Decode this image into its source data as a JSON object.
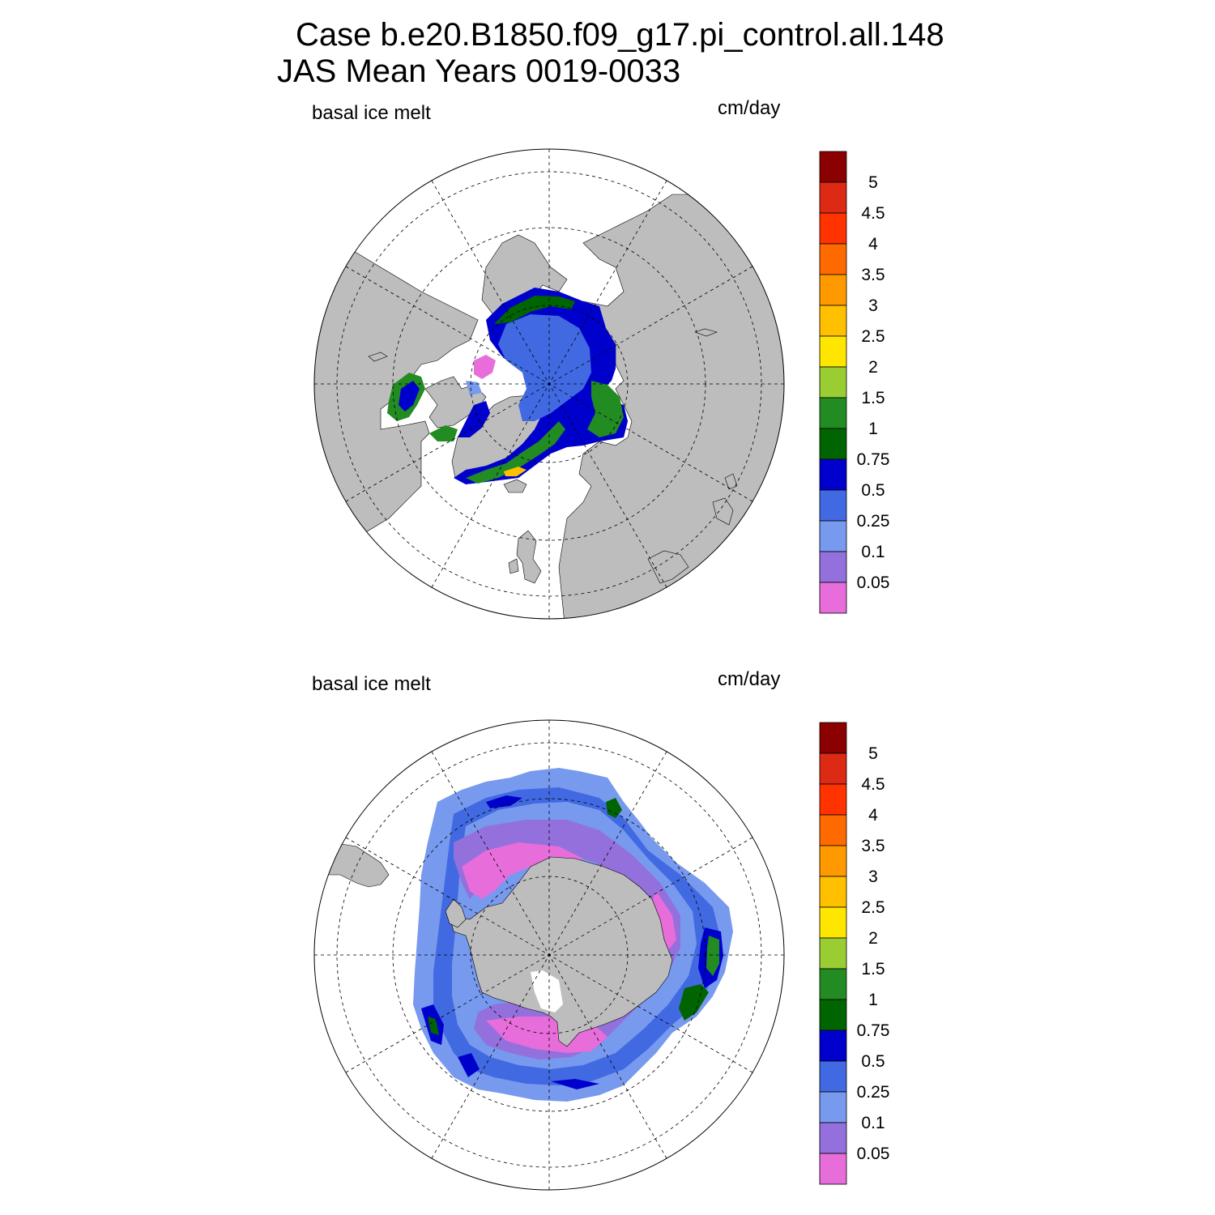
{
  "title": {
    "line1": "Case b.e20.B1850.f09_g17.pi_control.all.148",
    "line2": "JAS Mean   Years 0019-0033"
  },
  "panels": [
    {
      "id": "north",
      "variable": "basal ice melt",
      "units": "cm/day"
    },
    {
      "id": "south",
      "variable": "basal ice melt",
      "units": "cm/day"
    }
  ],
  "colorbar": {
    "levels": [
      "0.05",
      "0.1",
      "0.25",
      "0.5",
      "0.75",
      "1",
      "1.5",
      "2",
      "2.5",
      "3",
      "3.5",
      "4",
      "4.5",
      "5"
    ],
    "colors": [
      "#e76ddb",
      "#9370db",
      "#7799ee",
      "#4169e1",
      "#0000cd",
      "#006400",
      "#228b22",
      "#9acd32",
      "#ffe600",
      "#ffc000",
      "#ff9900",
      "#ff6a00",
      "#ff3300",
      "#dc2a14",
      "#8b0000"
    ]
  },
  "colors": {
    "land": "#bdbdbd",
    "grid": "#000000"
  }
}
